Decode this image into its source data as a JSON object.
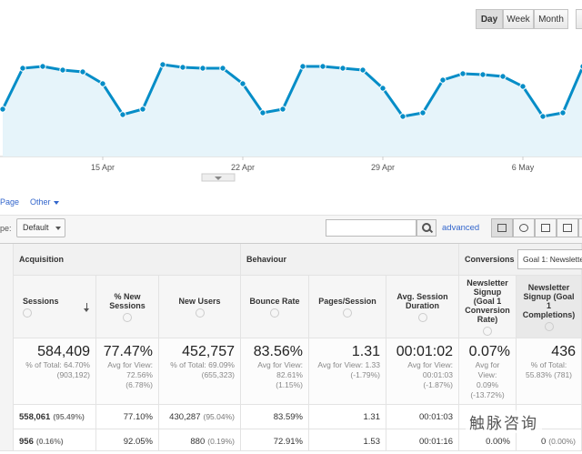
{
  "toolbar": {
    "buttons": [
      "Day",
      "Week",
      "Month"
    ]
  },
  "chart_data": {
    "type": "line",
    "x": [
      null,
      null,
      null,
      null,
      null,
      "15 Apr",
      null,
      null,
      null,
      null,
      null,
      null,
      "22 Apr",
      null,
      null,
      null,
      null,
      null,
      null,
      "29 Apr",
      null,
      null,
      null,
      null,
      null,
      null,
      "6 May",
      null,
      null,
      null
    ],
    "series": [
      {
        "color": "#058dc7",
        "values": [
          52,
          97,
          99,
          95,
          93,
          80,
          46,
          52,
          101,
          98,
          97,
          97,
          80,
          48,
          52,
          99,
          99,
          97,
          95,
          75,
          44,
          48,
          84,
          91,
          90,
          88,
          77,
          44,
          48,
          99
        ]
      }
    ],
    "ylim": [
      0,
      132
    ]
  },
  "tabs": [
    "Page",
    "Other"
  ],
  "controls": {
    "type_label": "pe:",
    "type_value": "Default",
    "advanced": "advanced"
  },
  "groups": [
    "Acquisition",
    "Behaviour",
    "Conversions"
  ],
  "goal_select": "Goal 1: Newslette",
  "columns": [
    "Sessions",
    "% New Sessions",
    "New Users",
    "Bounce Rate",
    "Pages/Session",
    "Avg. Session Duration",
    "Newsletter Signup (Goal 1 Conversion Rate)",
    "Newsletter Signup (Goal 1 Completions)"
  ],
  "totals": [
    {
      "main": "584,409",
      "sub": [
        "% of Total: 64.70%",
        "(903,192)"
      ]
    },
    {
      "main": "77.47%",
      "sub": [
        "Avg for View: 72.56%",
        "(6.78%)"
      ]
    },
    {
      "main": "452,757",
      "sub": [
        "% of Total: 69.09%",
        "(655,323)"
      ]
    },
    {
      "main": "83.56%",
      "sub": [
        "Avg for View: 82.61%",
        "(1.15%)"
      ]
    },
    {
      "main": "1.31",
      "sub": [
        "Avg for View: 1.33",
        "(-1.79%)"
      ]
    },
    {
      "main": "00:01:02",
      "sub": [
        "Avg for View: 00:01:03",
        "(-1.87%)"
      ]
    },
    {
      "main": "0.07%",
      "sub": [
        "Avg for",
        "View:",
        "0.09%",
        "(-13.72%)"
      ]
    },
    {
      "main": "436",
      "sub": [
        "% of Total:",
        "55.83% (781)"
      ]
    }
  ],
  "rows": [
    [
      [
        "558,061",
        "(95.49%)"
      ],
      [
        "77.10%"
      ],
      [
        "430,287",
        "(95.04%)"
      ],
      [
        "83.59%"
      ],
      [
        "1.31"
      ],
      [
        "00:01:03"
      ],
      [],
      []
    ],
    [
      [
        "956",
        "(0.16%)"
      ],
      [
        "92.05%"
      ],
      [
        "880",
        "(0.19%)"
      ],
      [
        "72.91%"
      ],
      [
        "1.53"
      ],
      [
        "00:01:16"
      ],
      [
        "0.00%"
      ],
      [
        "0",
        "(0.00%)"
      ]
    ]
  ],
  "watermark": "触脉咨询"
}
